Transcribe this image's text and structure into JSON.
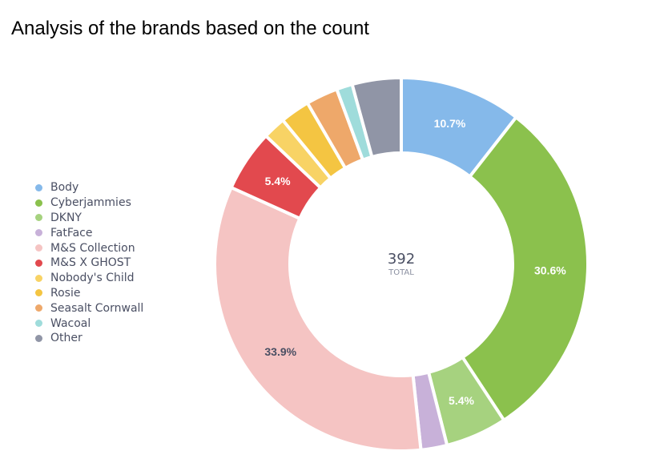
{
  "chart_data": {
    "type": "pie",
    "variant": "donut",
    "title": "Analysis of the brands based on the count",
    "total": {
      "value": "392",
      "label": "TOTAL"
    },
    "legend_position": "left",
    "series": [
      {
        "name": "Body",
        "value": 10.7,
        "label": "10.7%",
        "color": "#85b9ea"
      },
      {
        "name": "Cyberjammies",
        "value": 30.6,
        "label": "30.6%",
        "color": "#8bc14d"
      },
      {
        "name": "DKNY",
        "value": 5.4,
        "label": "5.4%",
        "color": "#a6d27f"
      },
      {
        "name": "FatFace",
        "value": 2.3,
        "label": "",
        "color": "#c8b1d9"
      },
      {
        "name": "M&S Collection",
        "value": 33.9,
        "label": "33.9%",
        "color": "#f5c4c3"
      },
      {
        "name": "M&S X GHOST",
        "value": 5.4,
        "label": "5.4%",
        "color": "#e2494e"
      },
      {
        "name": "Nobody's Child",
        "value": 2.0,
        "label": "",
        "color": "#f8d365"
      },
      {
        "name": "Rosie",
        "value": 2.6,
        "label": "",
        "color": "#f4c542"
      },
      {
        "name": "Seasalt Cornwall",
        "value": 2.8,
        "label": "",
        "color": "#eea86a"
      },
      {
        "name": "Wacoal",
        "value": 1.4,
        "label": "",
        "color": "#9fdcdb"
      },
      {
        "name": "Other",
        "value": 4.3,
        "label": "",
        "color": "#9095a6"
      }
    ],
    "label_color_light": "#ffffff",
    "label_color_dark": "#4a4f63"
  }
}
